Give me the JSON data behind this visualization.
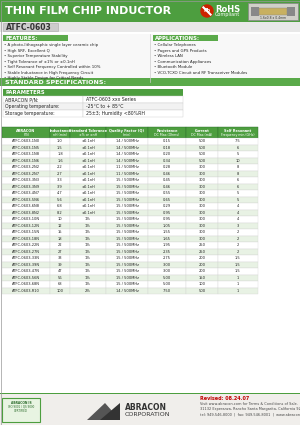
{
  "title": "THIN FILM CHIP INDUCTOR",
  "subtitle": "ATFC-0603",
  "green_header": "#4d9e3f",
  "green_section": "#5aaa4a",
  "green_label": "#5aaa4a",
  "green_table_hdr": "#4d9e3f",
  "green_row": "#e8f5e4",
  "white": "#ffffff",
  "light_gray": "#f2f2f2",
  "mid_gray": "#cccccc",
  "dark_text": "#1a1a1a",
  "features_title": "FEATURES:",
  "features": [
    "A photo-lithographic single layer ceramic chip",
    "High SRF, Excellent Q",
    "Superior Temperature Stability",
    "Tight Tolerance of ±1% or ±0.1nH",
    "Self Resonant Frequency Controlled within 10%",
    "Stable Inductance in High Frequency Circuit",
    "Highly Stable Design for Critical Needs"
  ],
  "applications_title": "APPLICATIONS:",
  "applications": [
    "Cellular Telephones",
    "Pagers and GPS Products",
    "Wireless LAN",
    "Communication Appliances",
    "Bluetooth Module",
    "VCO,TCXO Circuit and RF Transceiver Modules"
  ],
  "std_spec_title": "STANDARD SPECIFICATIONS:",
  "params_data": [
    [
      "ABRACON P/N:",
      "ATFC-0603 xxx Series"
    ],
    [
      "Operating temperature:",
      "-25°C to + 85°C"
    ],
    [
      "Storage temperature:",
      "25±3; Humidity <80%RH"
    ]
  ],
  "table_col0": "ABRACON\nP/N",
  "table_col1": "Inductance\nnH (min)",
  "table_col2": "Standard Tolerance\n±% or ±nH",
  "table_col3": "Quality Factor (Q)\n(min)",
  "table_col4": "Resistance\nDC Max.(Ohms)",
  "table_col5": "Current\nDC Max.(mA)",
  "table_col6": "Self Resonant\nFrequency min.(GHz)",
  "table_data": [
    [
      "ATFC-0603-1N0",
      "1.0",
      "±0.1nH",
      "14 / 500MHz",
      "0.15",
      "500",
      "7.5"
    ],
    [
      "ATFC-0603-1N5",
      "1.5",
      "±0.1nH",
      "14 / 500MHz",
      "0.18",
      "500",
      "6"
    ],
    [
      "ATFC-0603-1N8",
      "1.8",
      "±0.1nH",
      "14 / 500MHz",
      "0.20",
      "500",
      "5"
    ],
    [
      "ATFC-0603-1N6",
      "1.6",
      "±0.1nH",
      "14 / 500MHz",
      "0.34",
      "500",
      "10"
    ],
    [
      "ATFC-0603-2N2",
      "2.2",
      "±0.1nH",
      "11 / 500MHz",
      "0.28",
      "300",
      "8"
    ],
    [
      "ATFC-0603-2N7",
      "2.7",
      "±0.1nH",
      "11 / 500MHz",
      "0.46",
      "300",
      "8"
    ],
    [
      "ATFC-0603-3N3",
      "3.3",
      "±0.1nH",
      "15 / 500MHz",
      "0.45",
      "300",
      "6"
    ],
    [
      "ATFC-0603-3N9",
      "3.9",
      "±0.1nH",
      "15 / 500MHz",
      "0.46",
      "300",
      "6"
    ],
    [
      "ATFC-0603-4N7",
      "4.7",
      "±0.1nH",
      "15 / 500MHz",
      "0.55",
      "300",
      "5"
    ],
    [
      "ATFC-0603-5N6",
      "5.6",
      "±0.1nH",
      "15 / 500MHz",
      "0.65",
      "300",
      "5"
    ],
    [
      "ATFC-0603-6N8",
      "6.8",
      "±0.1nH",
      "15 / 500MHz",
      "0.29",
      "300",
      "4"
    ],
    [
      "ATFC-0603-8N2",
      "8.2",
      "±0.1nH",
      "15 / 500MHz",
      "0.95",
      "300",
      "4"
    ],
    [
      "ATFC-0603-10N",
      "10",
      "1%",
      "15 / 500MHz",
      "0.95",
      "300",
      "4"
    ],
    [
      "ATFC-0603-12N",
      "12",
      "1%",
      "15 / 500MHz",
      "1.05",
      "300",
      "3"
    ],
    [
      "ATFC-0603-15N",
      "15",
      "1%",
      "15 / 500MHz",
      "1.55",
      "300",
      "2"
    ],
    [
      "ATFC-0603-18N",
      "18",
      "1%",
      "15 / 500MHz",
      "1.65",
      "300",
      "2"
    ],
    [
      "ATFC-0603-22N",
      "22",
      "1%",
      "15 / 500MHz",
      "1.95",
      "250",
      "2"
    ],
    [
      "ATFC-0603-27N",
      "27",
      "1%",
      "15 / 500MHz",
      "2.35",
      "250",
      "2"
    ],
    [
      "ATFC-0603-33N",
      "33",
      "1%",
      "15 / 500MHz",
      "2.75",
      "200",
      "1.5"
    ],
    [
      "ATFC-0603-39N",
      "39",
      "1%",
      "15 / 500MHz",
      "3.00",
      "200",
      "1.5"
    ],
    [
      "ATFC-0603-47N",
      "47",
      "1%",
      "15 / 500MHz",
      "3.00",
      "200",
      "1.5"
    ],
    [
      "ATFC-0603-56N",
      "56",
      "1%",
      "15 / 500MHz",
      "5.00",
      "150",
      "1"
    ],
    [
      "ATFC-0603-68N",
      "68",
      "1%",
      "15 / 500MHz",
      "5.00",
      "100",
      "1"
    ],
    [
      "ATFC-0603-R10",
      "100",
      "2%",
      "14 / 500MHz",
      "7.50",
      "500",
      "1"
    ]
  ],
  "footer_revised": "Revised: 08.24.07",
  "footer_address": "31132 Esperanza, Rancho Santa Margarita, California 92688",
  "footer_contact": "tel: 949-546-8000  |  fax: 949-546-8001  |  www.abracon.com",
  "footer_bg": "#f0f0f0",
  "green_line": "#4d9e3f"
}
